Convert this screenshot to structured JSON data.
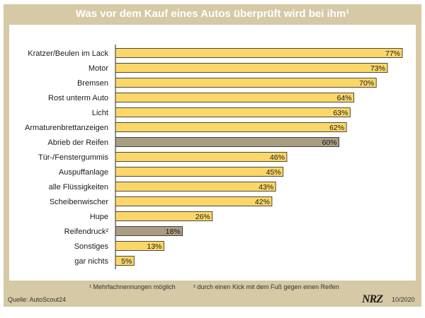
{
  "title": "Was vor dem Kauf eines Autos überprüft wird bei ihm¹",
  "footnote1": "¹ Mehrfachnennungen möglich",
  "footnote2": "² durch einen Kick mit dem Fuß gegen einen Reifen",
  "source": "Quelle: AutoScout24",
  "brand": "NRZ",
  "date": "10/2020",
  "colors": {
    "frame": "#d5c9a6",
    "bar": "#fad768",
    "highlight": "#a99d83",
    "outline": "#222222"
  },
  "chart_data": {
    "type": "bar",
    "orientation": "horizontal",
    "title": "Was vor dem Kauf eines Autos überprüft wird bei ihm¹",
    "xlabel": "",
    "ylabel": "",
    "xlim": [
      0,
      77
    ],
    "grid": false,
    "categories": [
      "Kratzer/Beulen im Lack",
      "Motor",
      "Bremsen",
      "Rost unterm Auto",
      "Licht",
      "Armaturenbrettanzeigen",
      "Abrieb der Reifen",
      "Tür-/Fenstergummis",
      "Auspuffanlage",
      "alle Flüssigkeiten",
      "Scheibenwischer",
      "Hupe",
      "Reifendruck²",
      "Sonstiges",
      "gar nichts"
    ],
    "values": [
      77,
      73,
      70,
      64,
      63,
      62,
      60,
      46,
      45,
      43,
      42,
      26,
      18,
      13,
      5
    ],
    "labels": [
      "77%",
      "73%",
      "70%",
      "64%",
      "63%",
      "62%",
      "60%",
      "46%",
      "45%",
      "43%",
      "42%",
      "26%",
      "18%",
      "13%",
      "5%"
    ],
    "highlighted": [
      "Abrieb der Reifen",
      "Reifendruck²"
    ],
    "unit": "%"
  }
}
